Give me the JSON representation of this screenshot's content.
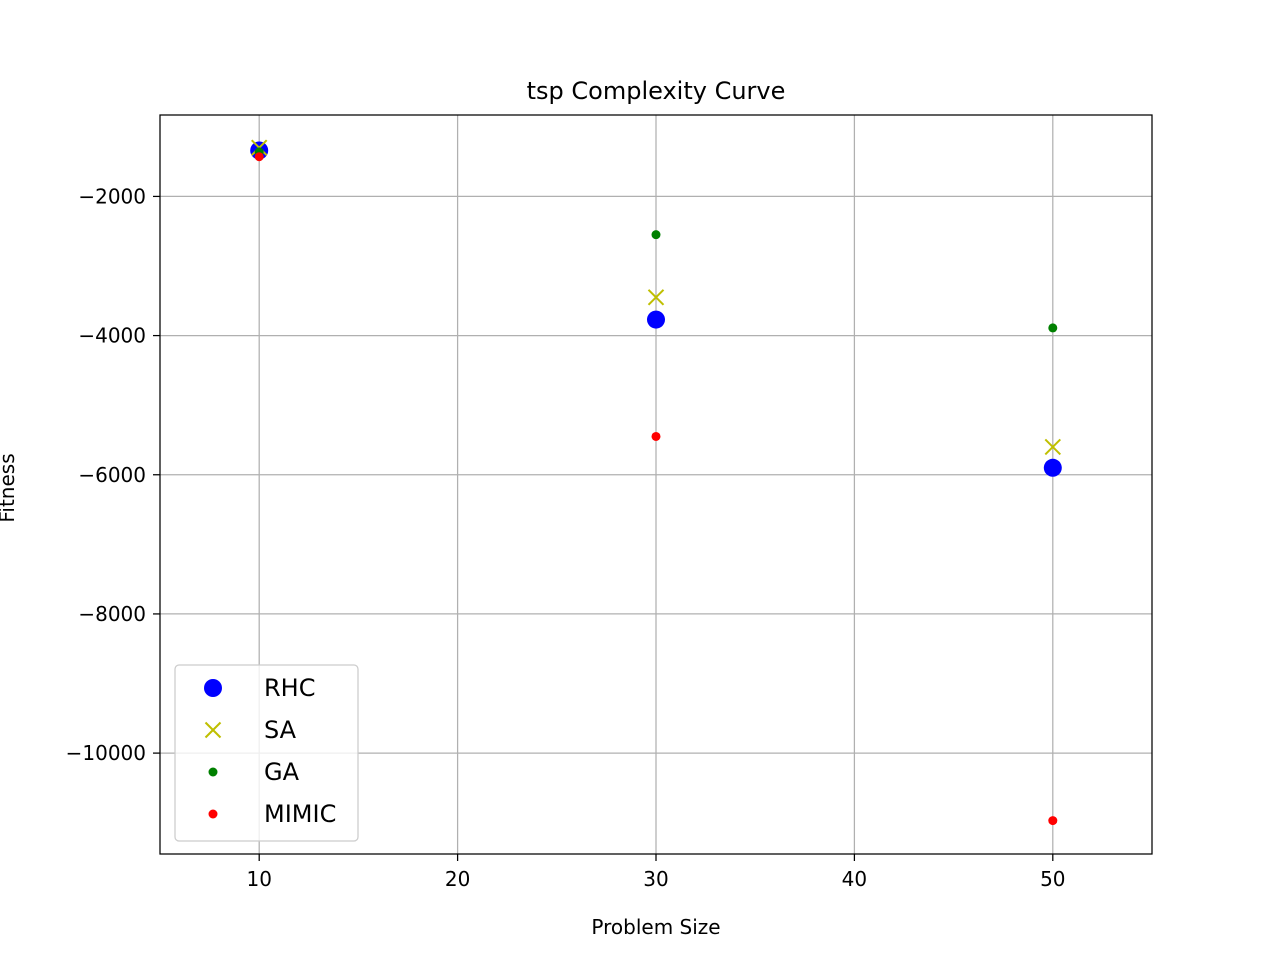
{
  "chart_data": {
    "type": "scatter",
    "title": "tsp Complexity Curve",
    "xlabel": "Problem Size",
    "ylabel": "Fitness",
    "xlim": [
      5,
      55
    ],
    "ylim": [
      -11450,
      -830
    ],
    "xticks": [
      10,
      20,
      30,
      40,
      50
    ],
    "xtick_labels": [
      "10",
      "20",
      "30",
      "40",
      "50"
    ],
    "yticks": [
      -2000,
      -4000,
      -6000,
      -8000,
      -10000
    ],
    "ytick_labels": [
      "−2000",
      "−4000",
      "−6000",
      "−8000",
      "−10000"
    ],
    "grid": true,
    "legend_position": "lower-left",
    "series": [
      {
        "name": "RHC",
        "marker": "circle-large",
        "color": "#0000ff",
        "x": [
          10,
          30,
          50
        ],
        "y": [
          -1340,
          -3770,
          -5900
        ]
      },
      {
        "name": "SA",
        "marker": "x",
        "color": "#bfbf00",
        "x": [
          10,
          30,
          50
        ],
        "y": [
          -1300,
          -3450,
          -5600
        ]
      },
      {
        "name": "GA",
        "marker": "circle-small",
        "color": "#008000",
        "x": [
          10,
          30,
          50
        ],
        "y": [
          -1360,
          -2550,
          -3890
        ]
      },
      {
        "name": "MIMIC",
        "marker": "circle-small",
        "color": "#ff0000",
        "x": [
          10,
          30,
          50
        ],
        "y": [
          -1430,
          -5450,
          -10970
        ]
      }
    ]
  }
}
